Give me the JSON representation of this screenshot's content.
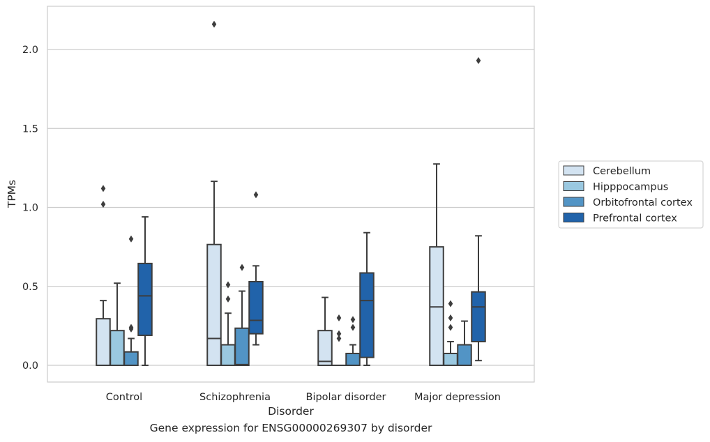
{
  "caption": "Gene expression for ENSG00000269307 by disorder",
  "chart_data": {
    "type": "box",
    "xlabel": "Disorder",
    "ylabel": "TPMs",
    "ylim": [
      -0.1,
      2.28
    ],
    "yticks": [
      "0.0",
      "0.5",
      "1.0",
      "1.5",
      "2.0"
    ],
    "grid": "horizontal",
    "legend_position": "right",
    "categories": [
      "Control",
      "Schizophrenia",
      "Bipolar disorder",
      "Major depression"
    ],
    "series": [
      {
        "name": "Cerebellum",
        "color": "#d3e3f1",
        "boxes": [
          {
            "whislo": 0.0,
            "q1": 0.0,
            "med": 0.0,
            "q3": 0.295,
            "whishi": 0.41,
            "fliers": [
              1.02,
              1.12
            ]
          },
          {
            "whislo": 0.0,
            "q1": 0.0,
            "med": 0.17,
            "q3": 0.765,
            "whishi": 1.165,
            "fliers": [
              2.16
            ]
          },
          {
            "whislo": 0.0,
            "q1": 0.0,
            "med": 0.025,
            "q3": 0.22,
            "whishi": 0.43,
            "fliers": []
          },
          {
            "whislo": 0.0,
            "q1": 0.0,
            "med": 0.37,
            "q3": 0.75,
            "whishi": 1.275,
            "fliers": []
          }
        ]
      },
      {
        "name": "Hipppocampus",
        "color": "#9ac8e0",
        "boxes": [
          {
            "whislo": 0.0,
            "q1": 0.0,
            "med": 0.0,
            "q3": 0.22,
            "whishi": 0.52,
            "fliers": []
          },
          {
            "whislo": 0.0,
            "q1": 0.0,
            "med": 0.0,
            "q3": 0.13,
            "whishi": 0.33,
            "fliers": [
              0.42,
              0.51
            ]
          },
          {
            "whislo": 0.0,
            "q1": 0.0,
            "med": 0.0,
            "q3": 0.0,
            "whishi": 0.0,
            "fliers": [
              0.17,
              0.2,
              0.3
            ]
          },
          {
            "whislo": 0.0,
            "q1": 0.0,
            "med": 0.0,
            "q3": 0.075,
            "whishi": 0.15,
            "fliers": [
              0.24,
              0.3,
              0.39
            ]
          }
        ]
      },
      {
        "name": "Orbitofrontal cortex",
        "color": "#5294c5",
        "boxes": [
          {
            "whislo": 0.0,
            "q1": 0.0,
            "med": 0.0,
            "q3": 0.085,
            "whishi": 0.17,
            "fliers": [
              0.23,
              0.24,
              0.8
            ]
          },
          {
            "whislo": 0.0,
            "q1": 0.0,
            "med": 0.005,
            "q3": 0.235,
            "whishi": 0.47,
            "fliers": [
              0.62
            ]
          },
          {
            "whislo": 0.0,
            "q1": 0.0,
            "med": 0.0,
            "q3": 0.075,
            "whishi": 0.13,
            "fliers": [
              0.24,
              0.29
            ]
          },
          {
            "whislo": 0.0,
            "q1": 0.0,
            "med": 0.0,
            "q3": 0.13,
            "whishi": 0.28,
            "fliers": []
          }
        ]
      },
      {
        "name": "Prefrontal cortex",
        "color": "#2163aa",
        "boxes": [
          {
            "whislo": 0.0,
            "q1": 0.19,
            "med": 0.44,
            "q3": 0.645,
            "whishi": 0.94,
            "fliers": []
          },
          {
            "whislo": 0.13,
            "q1": 0.2,
            "med": 0.285,
            "q3": 0.53,
            "whishi": 0.63,
            "fliers": [
              1.08
            ]
          },
          {
            "whislo": 0.0,
            "q1": 0.05,
            "med": 0.41,
            "q3": 0.585,
            "whishi": 0.84,
            "fliers": []
          },
          {
            "whislo": 0.03,
            "q1": 0.15,
            "med": 0.37,
            "q3": 0.465,
            "whishi": 0.82,
            "fliers": [
              1.93
            ]
          }
        ]
      }
    ]
  }
}
